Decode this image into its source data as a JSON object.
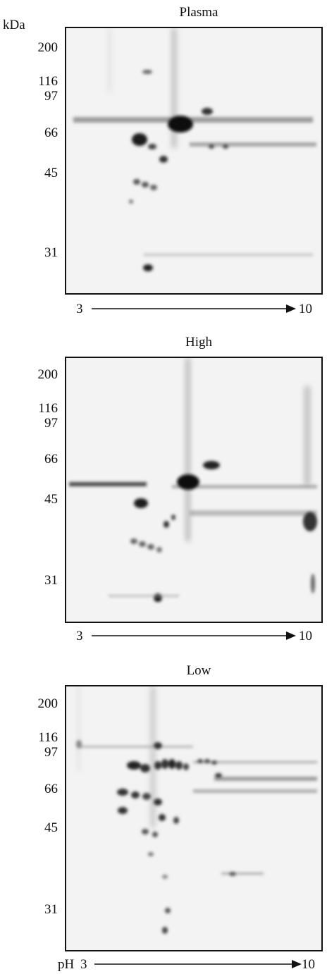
{
  "axis_unit": "kDa",
  "ph_label": "pH",
  "panels": [
    {
      "title": "Plasma",
      "mw_markers": [
        "200",
        "116",
        "97",
        "66",
        "45",
        "31"
      ],
      "ph_start": "3",
      "ph_end": "10"
    },
    {
      "title": "High",
      "mw_markers": [
        "200",
        "116",
        "97",
        "66",
        "45",
        "31"
      ],
      "ph_start": "3",
      "ph_end": "10"
    },
    {
      "title": "Low",
      "mw_markers": [
        "200",
        "116",
        "97",
        "66",
        "45",
        "31"
      ],
      "ph_start": "3",
      "ph_end": "10"
    }
  ],
  "colors": {
    "frame": "#111111",
    "gel_bg": "#f1f1f1",
    "spot": "#1a1a1a"
  }
}
